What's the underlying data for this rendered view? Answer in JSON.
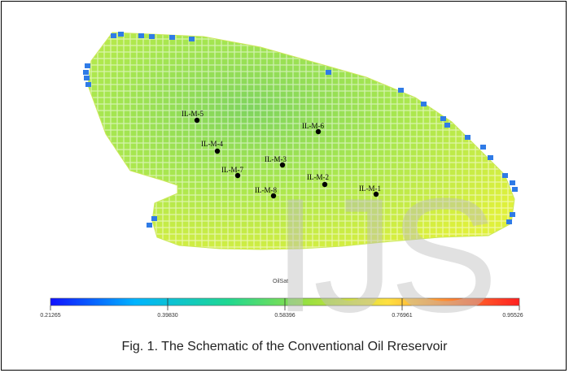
{
  "figure": {
    "caption": "Fig. 1. The Schematic of the Conventional Oil Rreservoir",
    "watermark": "IJS"
  },
  "colorbar": {
    "title": "OilSat",
    "ticks": [
      "0.21265",
      "0.39830",
      "0.58396",
      "0.76961",
      "0.95526"
    ],
    "min": 0.21265,
    "max": 0.95526,
    "colors": [
      "#1010ff",
      "#00b4ff",
      "#20d890",
      "#9ae040",
      "#ffe040",
      "#ff8030",
      "#ff2020"
    ]
  },
  "wells": [
    {
      "name": "IL-M-5"
    },
    {
      "name": "IL-M-6"
    },
    {
      "name": "IL-M-4"
    },
    {
      "name": "IL-M-3"
    },
    {
      "name": "IL-M-7"
    },
    {
      "name": "IL-M-2"
    },
    {
      "name": "IL-M-1"
    },
    {
      "name": "IL-M-8"
    }
  ],
  "grid_colors": {
    "base": "#a6e650",
    "center": "#7fd45e",
    "edge": "#dff03c",
    "edge_cells": "#2f7be6"
  }
}
